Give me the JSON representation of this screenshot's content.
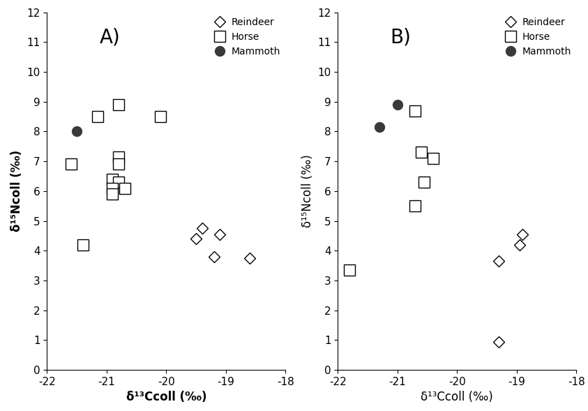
{
  "chart_data": [
    {
      "type": "scatter",
      "title": "A)",
      "x_label": "δ¹³Ccoll (‰)",
      "y_label": "δ¹⁵Ncoll (‰)",
      "xlim": [
        -22,
        -18
      ],
      "xticks": [
        -22,
        -21,
        -20,
        -19,
        -18
      ],
      "ylim": [
        0,
        12
      ],
      "yticks": [
        0,
        1,
        2,
        3,
        4,
        5,
        6,
        7,
        8,
        9,
        10,
        11,
        12
      ],
      "legend": "upper right",
      "series": [
        {
          "name": "Reindeer",
          "color": "#000000",
          "marker": "open_diamond",
          "x": [
            -19.4,
            -19.5,
            -19.1,
            -19.2,
            -18.6
          ],
          "y": [
            4.75,
            4.4,
            4.55,
            3.8,
            3.75
          ]
        },
        {
          "name": "Horse",
          "color": "#000000",
          "marker": "open_square",
          "x": [
            -21.15,
            -20.8,
            -20.1,
            -21.6,
            -20.8,
            -20.8,
            -20.9,
            -20.8,
            -20.9,
            -20.7,
            -20.9,
            -21.4
          ],
          "y": [
            8.5,
            8.9,
            8.5,
            6.9,
            7.15,
            6.9,
            6.4,
            6.3,
            6.1,
            6.1,
            5.9,
            4.2
          ]
        },
        {
          "name": "Mammoth",
          "color": "#3a3a3a",
          "marker": "circle",
          "x": [
            -21.5
          ],
          "y": [
            8.0
          ]
        }
      ]
    },
    {
      "type": "scatter",
      "title": "B)",
      "x_label": "δ¹³Ccoll (‰)",
      "y_label": "δ¹⁵Ncoll (‰)",
      "xlim": [
        -22,
        -18
      ],
      "xticks": [
        -22,
        -21,
        -20,
        -19,
        -18
      ],
      "ylim": [
        0,
        12
      ],
      "yticks": [
        0,
        1,
        2,
        3,
        4,
        5,
        6,
        7,
        8,
        9,
        10,
        11,
        12
      ],
      "legend": "upper right",
      "series": [
        {
          "name": "Reindeer",
          "color": "#000000",
          "marker": "open_diamond",
          "x": [
            -18.9,
            -18.95,
            -19.3,
            -19.3
          ],
          "y": [
            4.55,
            4.2,
            3.65,
            0.95
          ]
        },
        {
          "name": "Horse",
          "color": "#000000",
          "marker": "open_square",
          "x": [
            -20.7,
            -20.6,
            -20.4,
            -20.55,
            -20.7,
            -21.8
          ],
          "y": [
            8.7,
            7.3,
            7.1,
            6.3,
            5.5,
            3.35
          ]
        },
        {
          "name": "Mammoth",
          "color": "#3a3a3a",
          "marker": "circle",
          "x": [
            -21.0,
            -21.3
          ],
          "y": [
            8.9,
            8.15
          ]
        }
      ]
    }
  ]
}
